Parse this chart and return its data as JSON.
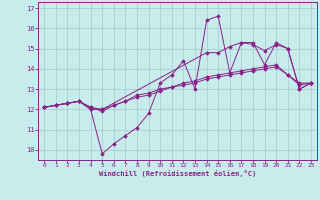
{
  "xlabel": "Windchill (Refroidissement éolien,°C)",
  "bg_color": "#c8ecec",
  "grid_color": "#a8d0d0",
  "line_color": "#882288",
  "text_color": "#882288",
  "ylim": [
    9.5,
    17.3
  ],
  "xlim": [
    -0.5,
    23.5
  ],
  "yticks": [
    10,
    11,
    12,
    13,
    14,
    15,
    16,
    17
  ],
  "xticks": [
    0,
    1,
    2,
    3,
    4,
    5,
    6,
    7,
    8,
    9,
    10,
    11,
    12,
    13,
    14,
    15,
    16,
    17,
    18,
    19,
    20,
    21,
    22,
    23
  ],
  "series": [
    {
      "x": [
        0,
        1,
        2,
        3,
        4,
        5,
        6,
        7,
        8,
        9,
        10,
        11,
        12,
        13,
        14,
        15,
        16,
        17,
        18,
        19,
        20,
        21,
        22,
        23
      ],
      "y": [
        12.1,
        12.2,
        12.3,
        12.4,
        12.0,
        9.8,
        10.3,
        10.7,
        11.1,
        11.8,
        13.3,
        13.7,
        14.4,
        13.0,
        16.4,
        16.6,
        13.8,
        15.3,
        15.3,
        14.2,
        15.3,
        15.0,
        13.0,
        13.3
      ]
    },
    {
      "x": [
        0,
        1,
        2,
        3,
        4,
        5,
        14,
        15,
        16,
        17,
        18,
        19,
        20,
        21,
        22,
        23
      ],
      "y": [
        12.1,
        12.2,
        12.3,
        12.4,
        12.0,
        12.0,
        14.8,
        14.8,
        15.1,
        15.3,
        15.2,
        14.9,
        15.2,
        15.0,
        13.0,
        13.3
      ]
    },
    {
      "x": [
        0,
        1,
        2,
        3,
        4,
        5,
        6,
        7,
        8,
        9,
        10,
        11,
        12,
        13,
        14,
        15,
        16,
        17,
        18,
        19,
        20,
        21,
        22,
        23
      ],
      "y": [
        12.1,
        12.2,
        12.3,
        12.4,
        12.1,
        11.9,
        12.2,
        12.4,
        12.6,
        12.7,
        12.9,
        13.1,
        13.3,
        13.4,
        13.6,
        13.7,
        13.8,
        13.9,
        14.0,
        14.1,
        14.2,
        13.7,
        13.2,
        13.3
      ]
    },
    {
      "x": [
        0,
        1,
        2,
        3,
        4,
        5,
        6,
        7,
        8,
        9,
        10,
        11,
        12,
        13,
        14,
        15,
        16,
        17,
        18,
        19,
        20,
        21,
        22,
        23
      ],
      "y": [
        12.1,
        12.2,
        12.3,
        12.4,
        12.1,
        12.0,
        12.2,
        12.4,
        12.7,
        12.8,
        13.0,
        13.1,
        13.2,
        13.3,
        13.5,
        13.6,
        13.7,
        13.8,
        13.9,
        14.0,
        14.1,
        13.7,
        13.3,
        13.3
      ]
    }
  ]
}
